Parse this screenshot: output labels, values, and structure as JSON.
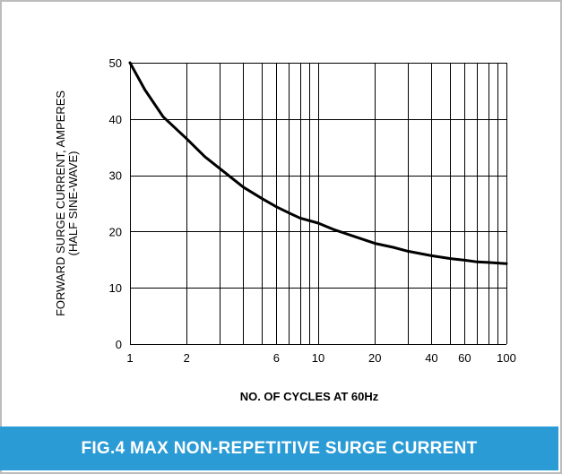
{
  "colors": {
    "caption_bg": "#2b9bd6",
    "frame_border": "#bcbcbc",
    "curve": "#000000",
    "grid": "#000000",
    "text": "#000000"
  },
  "caption": {
    "text": "FIG.4 MAX NON-REPETITIVE SURGE CURRENT"
  },
  "chart_data": {
    "type": "line",
    "x_scale": "log",
    "xlabel": "NO. OF CYCLES AT 60Hz",
    "ylabel_lines": [
      "FORWARD SURGE CURRENT, AMPERES",
      "(HALF SINE-WAVE)"
    ],
    "xlim": [
      1,
      100
    ],
    "ylim": [
      0,
      50
    ],
    "grid": true,
    "x_grid": [
      1,
      2,
      3,
      4,
      5,
      6,
      7,
      8,
      9,
      10,
      20,
      30,
      40,
      50,
      60,
      70,
      80,
      90,
      100
    ],
    "x_tick_values": [
      1,
      2,
      6,
      10,
      20,
      40,
      60,
      100
    ],
    "x_tick_labels": [
      "1",
      "2",
      "6",
      "10",
      "20",
      "40",
      "60",
      "100"
    ],
    "y_tick_values": [
      0,
      10,
      20,
      30,
      40,
      50
    ],
    "y_tick_labels": [
      "0",
      "10",
      "20",
      "30",
      "40",
      "50"
    ],
    "series": [
      {
        "x": [
          1,
          1.2,
          1.5,
          2,
          2.5,
          3,
          4,
          5,
          6,
          7,
          8,
          10,
          12,
          15,
          20,
          25,
          30,
          40,
          50,
          60,
          70,
          80,
          100
        ],
        "y": [
          50,
          45.2,
          40.4,
          36.5,
          33.3,
          31.2,
          27.9,
          25.9,
          24.4,
          23.3,
          22.4,
          21.5,
          20.4,
          19.3,
          17.9,
          17.2,
          16.5,
          15.7,
          15.2,
          14.9,
          14.6,
          14.5,
          14.3
        ]
      }
    ]
  }
}
